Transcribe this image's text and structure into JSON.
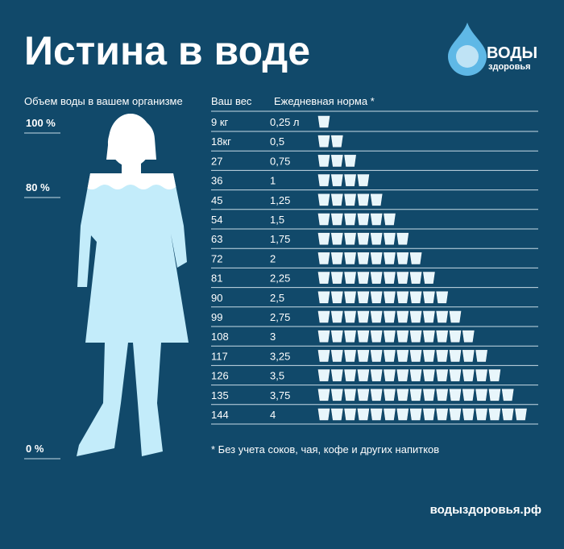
{
  "header": {
    "title": "Истина в воде",
    "logo": {
      "line1": "ВОДЫ",
      "line2": "здоровья"
    }
  },
  "body_scale": {
    "label": "Объем воды в вашем  организме",
    "marks": [
      "100 %",
      "80 %",
      "0 %"
    ]
  },
  "table": {
    "columns": [
      "Ваш вес",
      "Ежедневная норма *"
    ],
    "rows": [
      {
        "weight": "9 кг",
        "norm": "0,25 л",
        "glasses": 1
      },
      {
        "weight": "18кг",
        "norm": "0,5",
        "glasses": 2
      },
      {
        "weight": "27",
        "norm": "0,75",
        "glasses": 3
      },
      {
        "weight": "36",
        "norm": "1",
        "glasses": 4
      },
      {
        "weight": "45",
        "norm": "1,25",
        "glasses": 5
      },
      {
        "weight": "54",
        "norm": "1,5",
        "glasses": 6
      },
      {
        "weight": "63",
        "norm": "1,75",
        "glasses": 7
      },
      {
        "weight": "72",
        "norm": "2",
        "glasses": 8
      },
      {
        "weight": "81",
        "norm": "2,25",
        "glasses": 9
      },
      {
        "weight": "90",
        "norm": "2,5",
        "glasses": 10
      },
      {
        "weight": "99",
        "norm": "2,75",
        "glasses": 11
      },
      {
        "weight": "108",
        "norm": "3",
        "glasses": 12
      },
      {
        "weight": "117",
        "norm": "3,25",
        "glasses": 13
      },
      {
        "weight": "126",
        "norm": "3,5",
        "glasses": 14
      },
      {
        "weight": "135",
        "norm": "3,75",
        "glasses": 15
      },
      {
        "weight": "144",
        "norm": "4",
        "glasses": 16
      }
    ]
  },
  "footnote": "* Без учета соков, чая, кофе и других напитков",
  "website": "водыздоровья.рф"
}
